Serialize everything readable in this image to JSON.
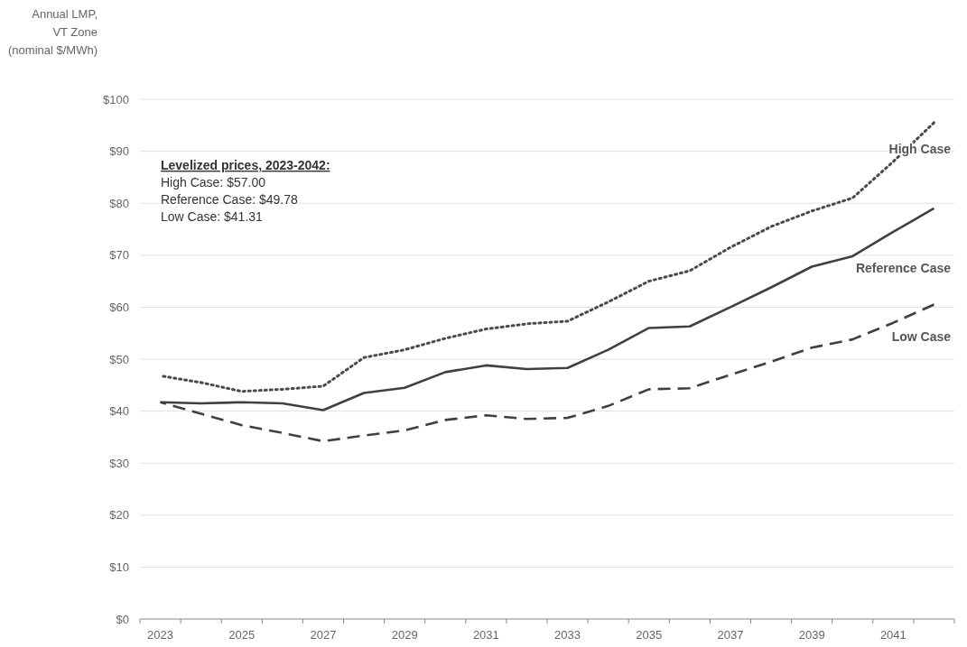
{
  "chart_data": {
    "type": "line",
    "ylabel": "Annual LMP,\nVT Zone\n(nominal $/MWh)",
    "categories": [
      "2023",
      null,
      "2025",
      null,
      "2027",
      null,
      "2029",
      null,
      "2031",
      null,
      "2033",
      null,
      "2035",
      null,
      "2037",
      null,
      "2039",
      null,
      "2041",
      null
    ],
    "ylim": [
      0,
      100
    ],
    "yticks": [
      {
        "value": 0,
        "label": "$0"
      },
      {
        "value": 10,
        "label": "$10"
      },
      {
        "value": 20,
        "label": "$20"
      },
      {
        "value": 30,
        "label": "$30"
      },
      {
        "value": 40,
        "label": "$40"
      },
      {
        "value": 50,
        "label": "$50"
      },
      {
        "value": 60,
        "label": "$60"
      },
      {
        "value": 70,
        "label": "$70"
      },
      {
        "value": 80,
        "label": "$80"
      },
      {
        "value": 90,
        "label": "$90"
      },
      {
        "value": 100,
        "label": "$100"
      }
    ],
    "grid": "y",
    "legend": false,
    "marker": "none",
    "series": [
      {
        "name": "High Case",
        "color": "#4a4a4a",
        "line_style": "dotted",
        "values": [
          46.8,
          45.5,
          43.8,
          44.2,
          44.8,
          50.3,
          51.8,
          54,
          55.8,
          56.8,
          57.3,
          61,
          65,
          67,
          71.5,
          75.5,
          78.5,
          81,
          88,
          95.5
        ]
      },
      {
        "name": "Reference Case",
        "color": "#404040",
        "line_style": "solid",
        "values": [
          41.7,
          41.5,
          41.7,
          41.5,
          40.2,
          43.5,
          44.5,
          47.5,
          48.8,
          48.1,
          48.3,
          51.8,
          56,
          56.3,
          60,
          63.8,
          67.8,
          69.8,
          74.5,
          79
        ]
      },
      {
        "name": "Low Case",
        "color": "#404040",
        "line_style": "dashed",
        "values": [
          41.7,
          39.5,
          37.3,
          35.8,
          34.2,
          35.3,
          36.3,
          38.3,
          39.2,
          38.5,
          38.7,
          41,
          44.2,
          44.4,
          47,
          49.5,
          52.2,
          53.8,
          57,
          60.5
        ]
      }
    ],
    "annotations": [
      "Levelized prices, 2023-2042:",
      "High Case: $57.00",
      "Reference Case: $49.78",
      "Low Case: $41.31"
    ]
  }
}
